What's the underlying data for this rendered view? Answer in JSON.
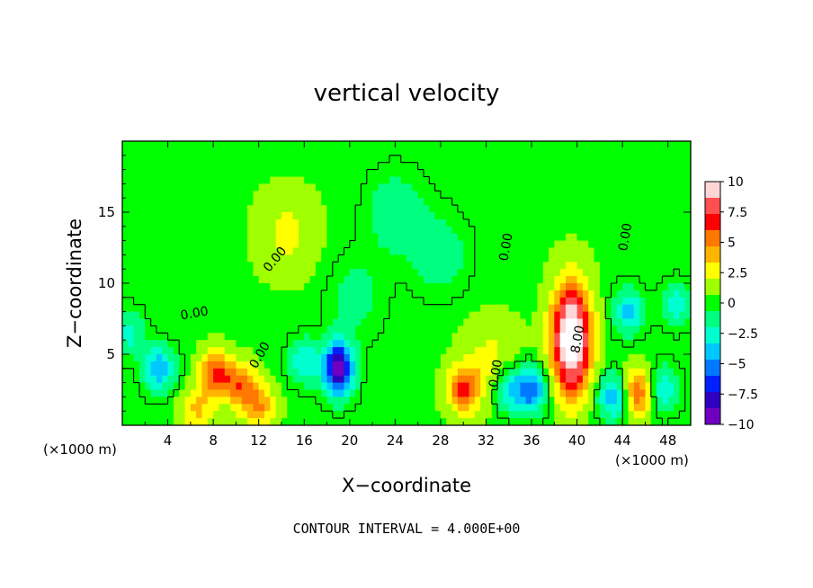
{
  "chart_data": {
    "type": "heatmap",
    "title": "vertical velocity",
    "xlabel": "X−coordinate",
    "ylabel": "Z−coordinate",
    "x_unit_left": "(×1000 m)",
    "x_unit_right": "(×1000 m)",
    "xlim": [
      0,
      50
    ],
    "ylim": [
      0,
      20
    ],
    "x_ticks": [
      4,
      8,
      12,
      16,
      20,
      24,
      28,
      32,
      36,
      40,
      44,
      48
    ],
    "x_tick_labels": [
      "4",
      "8",
      "12",
      "16",
      "20",
      "24",
      "28",
      "32",
      "36",
      "40",
      "44",
      "48"
    ],
    "y_ticks": [
      5,
      10,
      15
    ],
    "y_tick_labels": [
      "5",
      "10",
      "15"
    ],
    "colorbar": {
      "min": -10,
      "max": 10,
      "ticks": [
        10,
        7.5,
        5,
        2.5,
        0,
        -2.5,
        -5,
        -7.5,
        -10
      ],
      "tick_labels": [
        "10",
        "7.5",
        "5",
        "2.5",
        "0",
        "−2.5",
        "−5",
        "−7.5",
        "−10"
      ],
      "colors": [
        "#ffd6d6",
        "#ff5050",
        "#ff0000",
        "#ff7800",
        "#ffb400",
        "#ffff00",
        "#a0ff00",
        "#00ff00",
        "#00ff80",
        "#00ffd0",
        "#00c8ff",
        "#0078ff",
        "#0020ff",
        "#3000c0",
        "#7000c0"
      ]
    },
    "contour_interval_text": "CONTOUR INTERVAL = 4.000E+00",
    "contour_labels": [
      {
        "text": "0.00",
        "x": 13.7,
        "z": 11.5,
        "angle": -50
      },
      {
        "text": "0.00",
        "x": 6.4,
        "z": 7.6,
        "angle": -10
      },
      {
        "text": "0.00",
        "x": 12.4,
        "z": 4.8,
        "angle": -60
      },
      {
        "text": "0.00",
        "x": 34.1,
        "z": 12.5,
        "angle": -80
      },
      {
        "text": "0.00",
        "x": 33.2,
        "z": 3.6,
        "angle": -80
      },
      {
        "text": "0.00",
        "x": 44.6,
        "z": 13.2,
        "angle": -80
      },
      {
        "text": "8.00",
        "x": 40.4,
        "z": 6.0,
        "angle": -80
      }
    ],
    "features": [
      {
        "kind": "updraft",
        "x": 39.5,
        "z": 6.0,
        "peak": 12
      },
      {
        "kind": "downdraft",
        "x": 19.0,
        "z": 4.0,
        "peak": -10
      },
      {
        "kind": "updraft",
        "x": 8.2,
        "z": 3.5,
        "peak": 6
      },
      {
        "kind": "updraft",
        "x": 10.4,
        "z": 2.8,
        "peak": 5
      },
      {
        "kind": "updraft",
        "x": 12.1,
        "z": 1.3,
        "peak": 4
      },
      {
        "kind": "updraft",
        "x": 30.0,
        "z": 2.5,
        "peak": 6
      },
      {
        "kind": "updraft",
        "x": 45.4,
        "z": 2.3,
        "peak": 6
      },
      {
        "kind": "updraft",
        "x": 32.4,
        "z": 4.5,
        "peak": 2
      },
      {
        "kind": "updraft",
        "x": 6.5,
        "z": 1.0,
        "peak": 3
      },
      {
        "kind": "updraft",
        "x": 14.5,
        "z": 13.5,
        "peak": 2
      },
      {
        "kind": "downdraft",
        "x": 3.2,
        "z": 4.0,
        "peak": -5
      },
      {
        "kind": "downdraft",
        "x": 36.0,
        "z": 2.5,
        "peak": -6
      },
      {
        "kind": "downdraft",
        "x": 43.2,
        "z": 2.0,
        "peak": -5
      },
      {
        "kind": "downdraft",
        "x": 34.0,
        "z": 2.5,
        "peak": -4
      },
      {
        "kind": "downdraft",
        "x": 47.5,
        "z": 2.5,
        "peak": -4
      },
      {
        "kind": "downdraft",
        "x": 44.5,
        "z": 8.0,
        "peak": -4
      },
      {
        "kind": "downdraft",
        "x": 48.8,
        "z": 8.5,
        "peak": -3
      },
      {
        "kind": "downdraft",
        "x": 0.5,
        "z": 6.5,
        "peak": -3
      },
      {
        "kind": "downdraft",
        "x": 16.0,
        "z": 4.5,
        "peak": -3.5
      },
      {
        "kind": "downdraft",
        "x": 24.0,
        "z": 15.0,
        "peak": -2
      },
      {
        "kind": "downdraft",
        "x": 28.0,
        "z": 12.0,
        "peak": -1.8
      },
      {
        "kind": "downdraft",
        "x": 20.5,
        "z": 9.0,
        "peak": -1.5
      }
    ]
  }
}
